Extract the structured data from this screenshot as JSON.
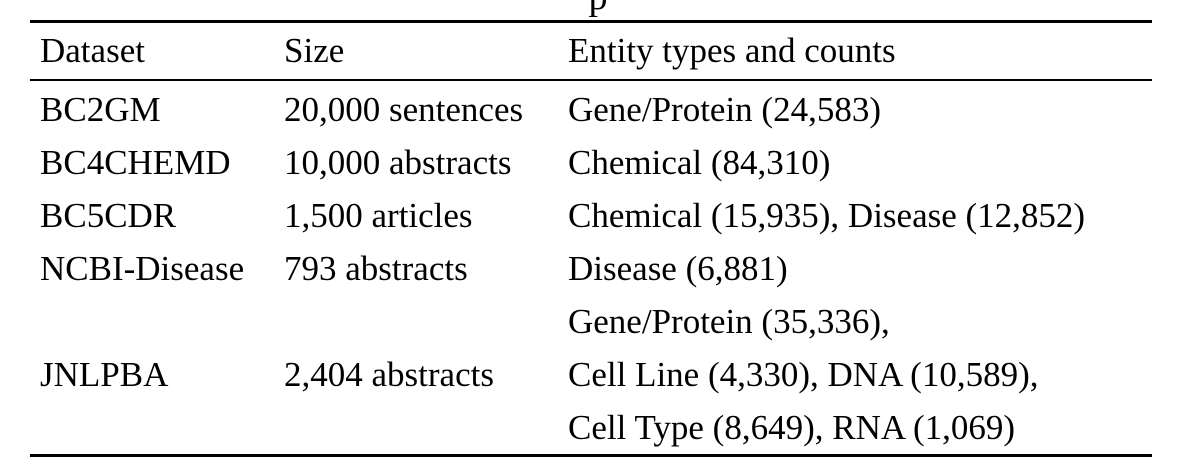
{
  "caption_fragment": "p",
  "table": {
    "headers": [
      "Dataset",
      "Size",
      "Entity types and counts"
    ],
    "rows": [
      {
        "dataset": "BC2GM",
        "size": "20,000 sentences",
        "entities": [
          "Gene/Protein (24,583)"
        ]
      },
      {
        "dataset": "BC4CHEMD",
        "size": "10,000 abstracts",
        "entities": [
          "Chemical (84,310)"
        ]
      },
      {
        "dataset": "BC5CDR",
        "size": "1,500 articles",
        "entities": [
          "Chemical (15,935), Disease (12,852)"
        ]
      },
      {
        "dataset": "NCBI-Disease",
        "size": "793 abstracts",
        "entities": [
          "Disease (6,881)"
        ]
      },
      {
        "dataset": "JNLPBA",
        "size": "2,404 abstracts",
        "entities": [
          "Gene/Protein (35,336),",
          "Cell Line (4,330), DNA (10,589),",
          "Cell Type (8,649), RNA (1,069)"
        ]
      }
    ]
  }
}
